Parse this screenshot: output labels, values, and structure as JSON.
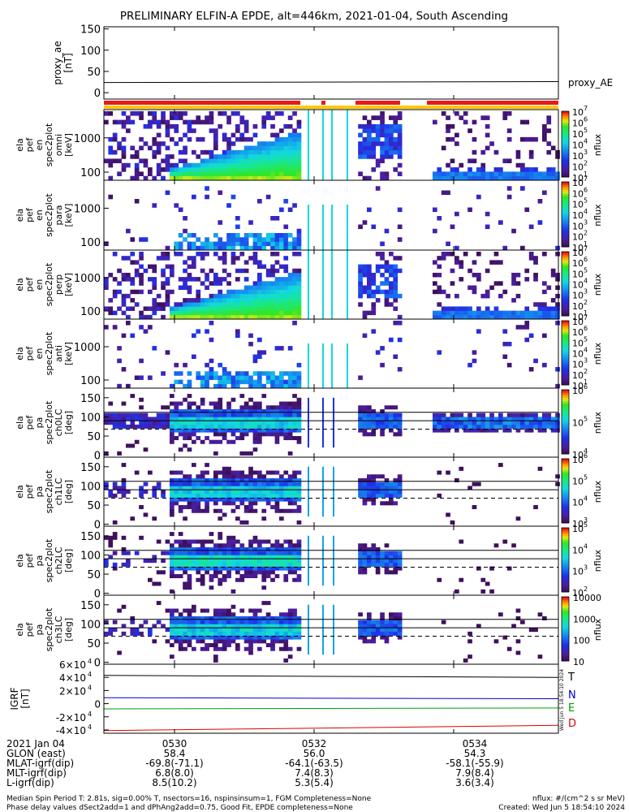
{
  "chart_data": {
    "type": "heatmap",
    "title": "PRELIMINARY ELFIN-A EPDE, alt=446km, 2021-01-04, South Ascending",
    "x_ticks": [
      "0530",
      "0532",
      "0534"
    ],
    "panels": [
      {
        "id": "proxy-ae",
        "ylabel_lines": [
          "proxy_ae",
          "[nT]"
        ],
        "yticks": [
          "150",
          "100",
          "50",
          "0"
        ],
        "legend": "proxy_AE",
        "series": [
          {
            "x": [
              0,
              1
            ],
            "y": [
              24,
              26
            ]
          }
        ]
      },
      {
        "id": "energy-omni",
        "ylabel_lines": [
          "ela",
          "pef",
          "en",
          "spec2plot",
          "omni",
          "[keV]"
        ],
        "yticks": [
          "1000",
          "100"
        ],
        "zlabel": "nflux",
        "zticks_exp": [
          "7",
          "6",
          "5",
          "4",
          "3",
          "2",
          "1"
        ]
      },
      {
        "id": "energy-para",
        "ylabel_lines": [
          "ela",
          "pef",
          "en",
          "spec2plot",
          "para",
          "[keV]"
        ],
        "yticks": [
          "1000",
          "100"
        ],
        "zlabel": "nflux",
        "zticks_exp": [
          "7",
          "6",
          "5",
          "4",
          "3",
          "2",
          "1"
        ]
      },
      {
        "id": "energy-perp",
        "ylabel_lines": [
          "ela",
          "pef",
          "en",
          "spec2plot",
          "perp",
          "[keV]"
        ],
        "yticks": [
          "1000",
          "100"
        ],
        "zlabel": "nflux",
        "zticks_exp": [
          "7",
          "6",
          "5",
          "4",
          "3",
          "2",
          "1"
        ]
      },
      {
        "id": "energy-anti",
        "ylabel_lines": [
          "ela",
          "pef",
          "en",
          "spec2plot",
          "anti",
          "[keV]"
        ],
        "yticks": [
          "1000",
          "100"
        ],
        "zlabel": "nflux",
        "zticks_exp": [
          "7",
          "6",
          "5",
          "4",
          "3",
          "2",
          "1"
        ]
      },
      {
        "id": "pa-ch0",
        "ylabel_lines": [
          "ela",
          "pef",
          "pa",
          "spec2plot",
          "ch0LC",
          "[deg]"
        ],
        "yticks": [
          "150",
          "100",
          "50",
          "0"
        ],
        "zlabel": "nflux",
        "zticks": [
          "10",
          "10",
          "10"
        ],
        "zticks_exp": [
          "6",
          "5",
          "4"
        ]
      },
      {
        "id": "pa-ch1",
        "ylabel_lines": [
          "ela",
          "pef",
          "pa",
          "spec2plot",
          "ch1LC",
          "[deg]"
        ],
        "yticks": [
          "150",
          "100",
          "50",
          "0"
        ],
        "zlabel": "nflux",
        "zticks": [
          "10",
          "10",
          "10",
          "10"
        ],
        "zticks_exp": [
          "6",
          "5",
          "4",
          "3"
        ]
      },
      {
        "id": "pa-ch2",
        "ylabel_lines": [
          "ela",
          "pef",
          "pa",
          "spec2plot",
          "ch2LC",
          "[deg]"
        ],
        "yticks": [
          "150",
          "100",
          "50",
          "0"
        ],
        "zlabel": "nflux",
        "zticks": [
          "10",
          "10",
          "10",
          "10"
        ],
        "zticks_exp": [
          "5",
          "4",
          "3",
          "2"
        ]
      },
      {
        "id": "pa-ch3",
        "ylabel_lines": [
          "ela",
          "pef",
          "pa",
          "spec2plot",
          "ch3LC",
          "[deg]"
        ],
        "yticks": [
          "150",
          "100",
          "50",
          "0"
        ],
        "zlabel": "nflux",
        "zticks": [
          "10000",
          "1000",
          "100",
          "10"
        ]
      },
      {
        "id": "igrf",
        "ylabel_lines": [
          "IGRF",
          "[nT]"
        ],
        "ytick_mantissa": [
          "6",
          "4",
          "2",
          "0",
          "-2",
          "-4"
        ],
        "legend": [
          "T",
          "N",
          "E",
          "D"
        ],
        "series": [
          {
            "name": "T",
            "color": "#000000",
            "x": [
              0,
              1
            ],
            "y": [
              43000,
              40000
            ]
          },
          {
            "name": "N",
            "color": "#0000cc",
            "x": [
              0,
              1
            ],
            "y": [
              9000,
              7500
            ]
          },
          {
            "name": "E",
            "color": "#00a000",
            "x": [
              0,
              1
            ],
            "y": [
              -8000,
              -6500
            ]
          },
          {
            "name": "D",
            "color": "#dd0000",
            "x": [
              0,
              1
            ],
            "y": [
              -41000,
              -33000
            ]
          }
        ],
        "ylim": [
          -45000,
          60000
        ]
      }
    ],
    "status_bar_colors": {
      "science": "#e8191a",
      "flag": "#ffc800"
    }
  },
  "footer": {
    "table": [
      {
        "label": "2021 Jan 04",
        "values": [
          "0530",
          "0532",
          "0534"
        ]
      },
      {
        "label": "GLON (east)",
        "values": [
          "58.4",
          "56.0",
          "54.3"
        ]
      },
      {
        "label": "MLAT-igrf(dip)",
        "values": [
          "-69.8(-71.1)",
          "-64.1(-63.5)",
          "-58.1(-55.9)"
        ]
      },
      {
        "label": "MLT-igrf(dip)",
        "values": [
          "6.8(8.0)",
          "7.4(8.3)",
          "7.9(8.4)"
        ]
      },
      {
        "label": "L-igrf(dip)",
        "values": [
          "8.5(10.2)",
          "5.3(5.4)",
          "3.6(3.4)"
        ]
      }
    ],
    "note_left_1": "Median Spin Period T: 2.81s, sig=0.00% T, nsectors=16, nspinsinsum=1, FGM Completeness=None",
    "note_left_2": "Phase delay values dSect2add=1 and dPhAng2add=0.75, Good Fit, EPDE completeness=None",
    "note_right_1": "nflux: #/(cm^2 s sr MeV)",
    "note_right_2": "Created: Wed Jun  5 18:54:10 2024",
    "side_stamp": "Wed Jun  5 18:54:10 2024"
  }
}
